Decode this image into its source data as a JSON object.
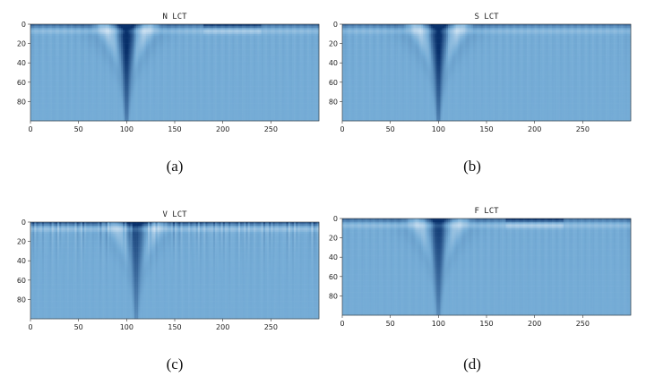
{
  "chart_data": [
    {
      "type": "heatmap",
      "title": "N LCT",
      "caption": "(a)",
      "xlim": [
        0,
        300
      ],
      "ylim": [
        100,
        0
      ],
      "xticks": [
        "0",
        "50",
        "100",
        "150",
        "200",
        "250"
      ],
      "yticks": [
        "0",
        "20",
        "40",
        "60",
        "80"
      ],
      "colormap": [
        "#f7fbff",
        "#c6dbef",
        "#6baed6",
        "#2171b5",
        "#08306b"
      ],
      "base_color": "#75acd6",
      "features": [
        {
          "kind": "notch",
          "x": 100,
          "depth": 100,
          "strength": 1.0
        },
        {
          "kind": "top_band",
          "x_from": 0,
          "x_to": 300,
          "strength": 0.6
        },
        {
          "kind": "top_band",
          "x_from": 180,
          "x_to": 240,
          "strength": 0.5
        }
      ]
    },
    {
      "type": "heatmap",
      "title": "S LCT",
      "caption": "(b)",
      "xlim": [
        0,
        300
      ],
      "ylim": [
        100,
        0
      ],
      "xticks": [
        "0",
        "50",
        "100",
        "150",
        "200",
        "250"
      ],
      "yticks": [
        "0",
        "20",
        "40",
        "60",
        "80"
      ],
      "colormap": [
        "#f7fbff",
        "#c6dbef",
        "#6baed6",
        "#2171b5",
        "#08306b"
      ],
      "base_color": "#75acd6",
      "features": [
        {
          "kind": "notch",
          "x": 100,
          "depth": 100,
          "strength": 1.0
        },
        {
          "kind": "top_band",
          "x_from": 0,
          "x_to": 300,
          "strength": 0.5
        }
      ]
    },
    {
      "type": "heatmap",
      "title": "V LCT",
      "caption": "(c)",
      "xlim": [
        0,
        300
      ],
      "ylim": [
        100,
        0
      ],
      "xticks": [
        "0",
        "50",
        "100",
        "150",
        "200",
        "250"
      ],
      "yticks": [
        "0",
        "20",
        "40",
        "60",
        "80"
      ],
      "colormap": [
        "#f7fbff",
        "#c6dbef",
        "#6baed6",
        "#2171b5",
        "#08306b"
      ],
      "base_color": "#75acd6",
      "features": [
        {
          "kind": "notch",
          "x": 110,
          "depth": 100,
          "strength": 0.7
        },
        {
          "kind": "top_band",
          "x_from": 0,
          "x_to": 300,
          "strength": 0.7
        },
        {
          "kind": "streaks",
          "x_from": 0,
          "x_to": 300,
          "strength": 0.6
        }
      ]
    },
    {
      "type": "heatmap",
      "title": "F LCT",
      "caption": "(d)",
      "xlim": [
        0,
        300
      ],
      "ylim": [
        100,
        0
      ],
      "xticks": [
        "0",
        "50",
        "100",
        "150",
        "200",
        "250"
      ],
      "yticks": [
        "0",
        "20",
        "40",
        "60",
        "80"
      ],
      "colormap": [
        "#f7fbff",
        "#c6dbef",
        "#6baed6",
        "#2171b5",
        "#08306b"
      ],
      "base_color": "#75acd6",
      "features": [
        {
          "kind": "notch",
          "x": 100,
          "depth": 100,
          "strength": 0.8
        },
        {
          "kind": "top_band",
          "x_from": 0,
          "x_to": 300,
          "strength": 0.6
        },
        {
          "kind": "top_band",
          "x_from": 170,
          "x_to": 230,
          "strength": 0.6
        }
      ]
    }
  ]
}
